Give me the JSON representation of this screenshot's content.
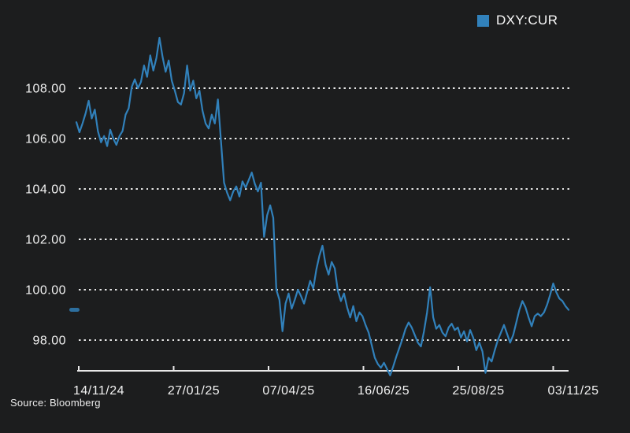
{
  "legend": {
    "series_label": "DXY:CUR"
  },
  "footer": {
    "source": "Source: Bloomberg"
  },
  "colors": {
    "background": "#1c1d1e",
    "accent_blue": "#3181bb",
    "marker_blue": "#2d6f9f",
    "text": "#f2f2f2",
    "grid": "#e6e6e6",
    "axis": "#e8e8e8"
  },
  "chart_data": {
    "type": "line",
    "title": "",
    "xlabel": "",
    "ylabel": "",
    "x_range": [
      "14/11/24",
      "03/11/25"
    ],
    "x_tick_labels": [
      "14/11/24",
      "27/01/25",
      "07/04/25",
      "16/06/25",
      "25/08/25",
      "03/11/25"
    ],
    "y_ticks": [
      {
        "value": 108,
        "label": "108.00"
      },
      {
        "value": 106,
        "label": "106.00"
      },
      {
        "value": 104,
        "label": "104.00"
      },
      {
        "value": 102,
        "label": "102.00"
      },
      {
        "value": 100,
        "label": "100.00"
      },
      {
        "value": 98,
        "label": "98.00"
      }
    ],
    "ylim": [
      96.6,
      110.4
    ],
    "grid": "dotted-horizontal",
    "legend_position": "top-right",
    "high": 110.0,
    "low": 96.6,
    "last_value": 99.2,
    "series": [
      {
        "name": "DXY:CUR",
        "color": "#3181bb",
        "values": [
          106.65,
          106.25,
          106.6,
          107.0,
          107.5,
          106.8,
          107.15,
          106.3,
          105.85,
          106.1,
          105.7,
          106.35,
          106.0,
          105.75,
          106.1,
          106.3,
          106.95,
          107.2,
          108.05,
          108.35,
          108.0,
          108.25,
          108.9,
          108.45,
          109.3,
          108.7,
          109.2,
          110.0,
          109.25,
          108.65,
          109.1,
          108.3,
          107.9,
          107.45,
          107.35,
          107.8,
          108.9,
          107.9,
          108.3,
          107.6,
          107.9,
          107.1,
          106.6,
          106.4,
          106.95,
          106.6,
          107.55,
          105.9,
          104.25,
          103.85,
          103.55,
          103.9,
          104.1,
          103.7,
          104.3,
          104.05,
          104.35,
          104.65,
          104.2,
          103.9,
          104.25,
          102.1,
          102.95,
          103.35,
          102.85,
          100.0,
          99.6,
          98.35,
          99.45,
          99.85,
          99.25,
          99.6,
          100.0,
          99.75,
          99.45,
          99.9,
          100.35,
          100.05,
          100.8,
          101.35,
          101.75,
          101.0,
          100.6,
          101.1,
          100.85,
          99.95,
          99.55,
          99.85,
          99.3,
          98.9,
          99.35,
          98.75,
          99.1,
          98.95,
          98.6,
          98.3,
          97.8,
          97.3,
          97.05,
          96.9,
          97.1,
          96.85,
          96.6,
          96.95,
          97.35,
          97.7,
          98.05,
          98.45,
          98.7,
          98.5,
          98.2,
          97.9,
          97.75,
          98.35,
          99.1,
          100.1,
          98.9,
          98.45,
          98.6,
          98.3,
          98.15,
          98.5,
          98.65,
          98.4,
          98.5,
          98.1,
          98.35,
          97.95,
          98.4,
          98.1,
          97.6,
          97.9,
          97.55,
          96.7,
          97.3,
          97.15,
          97.6,
          98.0,
          98.3,
          98.6,
          98.25,
          97.9,
          98.2,
          98.7,
          99.2,
          99.55,
          99.3,
          98.9,
          98.55,
          98.95,
          99.05,
          98.95,
          99.1,
          99.4,
          99.8,
          100.25,
          99.9,
          99.65,
          99.55,
          99.35,
          99.2
        ]
      }
    ]
  }
}
